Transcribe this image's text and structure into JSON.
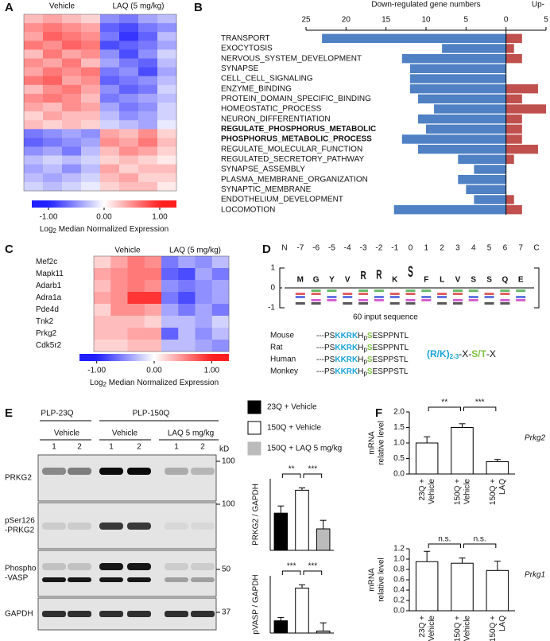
{
  "panel_labels": [
    "A",
    "B",
    "C",
    "D",
    "E",
    "F"
  ],
  "chart_data": [
    {
      "type": "heatmap",
      "group_labels": [
        "Vehicle",
        "LAQ (5 mg/kg)"
      ],
      "colors": [
        "#1f1fff",
        "#ffffff",
        "#ff1f1f"
      ],
      "clim": [
        -1,
        1
      ],
      "colorbar_lim": [
        -1.3,
        1.3
      ],
      "colorbar_ticks": [
        {
          "value": -1,
          "label": "-1.00"
        },
        {
          "value": 0,
          "label": "0.00"
        },
        {
          "value": 1,
          "label": "1.00"
        }
      ],
      "colorbar_label": [
        "Log",
        "2",
        " Median Normalized Expression"
      ],
      "values": [
        [
          0.3,
          0.4,
          0.3,
          0.2,
          -0.5,
          -0.6,
          -0.4,
          -0.3
        ],
        [
          0.5,
          0.6,
          0.5,
          0.4,
          -0.7,
          -0.8,
          -0.6,
          -0.5
        ],
        [
          0.4,
          0.7,
          0.6,
          0.5,
          -0.6,
          -0.9,
          -0.7,
          -0.3
        ],
        [
          0.6,
          0.5,
          0.7,
          0.6,
          -0.8,
          -0.7,
          -0.6,
          -0.4
        ],
        [
          0.3,
          0.6,
          0.4,
          0.5,
          -0.5,
          -0.8,
          -0.5,
          -0.2
        ],
        [
          0.5,
          0.4,
          0.6,
          0.3,
          -0.4,
          -0.6,
          -0.7,
          -0.3
        ],
        [
          0.4,
          0.6,
          0.5,
          0.6,
          -0.6,
          -0.5,
          -0.8,
          -0.4
        ],
        [
          0.6,
          0.7,
          0.4,
          0.5,
          -0.7,
          -0.6,
          -0.5,
          -0.3
        ],
        [
          0.3,
          0.5,
          0.6,
          0.4,
          -0.5,
          -0.7,
          -0.6,
          -0.2
        ],
        [
          0.5,
          0.6,
          0.5,
          0.3,
          -0.6,
          -0.5,
          -0.4,
          -0.3
        ],
        [
          0.4,
          0.3,
          0.5,
          0.4,
          -0.4,
          -0.6,
          -0.5,
          -0.2
        ],
        [
          0.2,
          0.4,
          0.3,
          0.3,
          -0.3,
          -0.5,
          -0.4,
          -0.2
        ],
        [
          0.3,
          0.2,
          0.3,
          0.2,
          -0.2,
          -0.3,
          -0.4,
          -0.1
        ],
        [
          -0.6,
          -0.5,
          -0.4,
          -0.5,
          0.4,
          0.3,
          0.5,
          0.2
        ],
        [
          -0.7,
          -0.6,
          -0.5,
          -0.4,
          0.5,
          0.4,
          0.6,
          0.3
        ],
        [
          -0.5,
          -0.4,
          -0.6,
          -0.3,
          0.3,
          0.5,
          0.4,
          0.2
        ],
        [
          -0.3,
          -0.2,
          -0.3,
          -0.2,
          0.2,
          0.3,
          0.2,
          0.1
        ],
        [
          -0.4,
          -0.3,
          -0.5,
          -0.3,
          0.4,
          0.2,
          0.3,
          0.3
        ],
        [
          -0.3,
          -0.4,
          -0.3,
          -0.2,
          0.3,
          0.4,
          0.2,
          0.2
        ],
        [
          -0.2,
          -0.3,
          -0.2,
          -0.1,
          0.2,
          0.3,
          0.3,
          0.1
        ]
      ]
    },
    {
      "type": "barh",
      "xlabel": "Down-regulated gene numbers",
      "xlabel_up": "Up-",
      "categories": [
        "TRANSPORT",
        "EXOCYTOSIS",
        "NERVOUS_SYSTEM_DEVELOPMENT",
        "SYNAPSE",
        "CELL_CELL_SIGNALING",
        "ENZYME_BINDING",
        "PROTEIN_DOMAIN_SPECIFIC_BINDING",
        "HOMEOSTATIC_PROCESS",
        "NEURON_DIFFERENTIATION",
        "REGULATE_PHOSPHORUS_METABOLIC",
        "PHOSPHORUS_METABOLIC_PROCESS",
        "REGULATE_MOLECULAR_FUNCTION",
        "REGULATED_SECRETORY_PATHWAY",
        "SYNAPSE_ASSEMBLY",
        "PLASMA_MEMBRANE_ORGANIZATION",
        "SYNAPTIC_MEMBRANE",
        "ENDOTHELIUM_DEVELOPMENT",
        "LOCOMOTION"
      ],
      "bold": [
        9,
        10
      ],
      "down_values": [
        23,
        8,
        13,
        12,
        12,
        12,
        11,
        9,
        11,
        10,
        13,
        11,
        6,
        4,
        6,
        5,
        4,
        14
      ],
      "up_values": [
        2,
        1,
        2,
        0,
        0,
        4,
        2,
        5,
        2,
        2,
        2,
        4,
        1,
        0,
        0,
        0,
        1,
        2
      ],
      "down_color": "#4f81c4",
      "up_color": "#c0504d",
      "xlim": [
        -25,
        5
      ],
      "xticks": [
        {
          "value": -25,
          "label": "25"
        },
        {
          "value": -20,
          "label": "20"
        },
        {
          "value": -15,
          "label": "15"
        },
        {
          "value": -10,
          "label": "10"
        },
        {
          "value": -5,
          "label": "5"
        },
        0,
        5
      ]
    },
    {
      "type": "heatmap",
      "group_labels": [
        "Vehicle",
        "LAQ (5 mg/kg)"
      ],
      "rows": [
        "Mef2c",
        "Mapk11",
        "Adarb1",
        "Adra1a",
        "Pde4d",
        "Tnk2",
        "Prkg2",
        "Cdk5r2"
      ],
      "colors": [
        "#1f1fff",
        "#ffffff",
        "#ff1f1f"
      ],
      "clim": [
        -1,
        1
      ],
      "colorbar_lim": [
        -1.3,
        1.3
      ],
      "colorbar_ticks": [
        {
          "value": -1,
          "label": "-1.00"
        },
        {
          "value": 0,
          "label": "0.00"
        },
        {
          "value": 1,
          "label": "1.00"
        }
      ],
      "colorbar_label": [
        "Log",
        "2",
        " Median Normalized Expression"
      ],
      "values": [
        [
          0.2,
          0.4,
          0.6,
          0.5,
          -0.6,
          -0.4,
          -0.5,
          -0.3
        ],
        [
          0.4,
          0.5,
          0.6,
          0.6,
          -0.7,
          -0.8,
          -0.4,
          -0.6
        ],
        [
          0.3,
          0.5,
          0.6,
          0.5,
          -0.5,
          -0.6,
          -0.5,
          -0.4
        ],
        [
          0.4,
          0.5,
          0.9,
          0.9,
          -0.6,
          -0.8,
          -0.5,
          -0.4
        ],
        [
          0.2,
          0.5,
          0.5,
          0.4,
          -0.4,
          -0.6,
          -0.4,
          -0.6
        ],
        [
          0.3,
          0.3,
          0.3,
          0.2,
          -0.3,
          -0.3,
          -0.4,
          -0.2
        ],
        [
          0.3,
          0.3,
          0.4,
          0.4,
          -0.7,
          -0.3,
          -0.5,
          -0.3
        ],
        [
          0.2,
          0.2,
          0.3,
          0.3,
          -0.3,
          -0.3,
          -0.4,
          -0.5
        ]
      ]
    },
    {
      "type": "bar",
      "ylabel": [
        "PRKG2 / GAPDH"
      ],
      "values": [
        1.3,
        2.1,
        0.75
      ],
      "errors": [
        0.25,
        0.08,
        0.3
      ],
      "colors": [
        "#000000",
        "#ffffff",
        "#bbbbbb"
      ],
      "ylim": [
        0,
        2.5
      ],
      "significance": [
        "**",
        "***"
      ]
    },
    {
      "type": "bar",
      "ylabel": [
        "pVASP / GAPDH"
      ],
      "values": [
        0.3,
        1.1,
        0.05
      ],
      "errors": [
        0.08,
        0.08,
        0.2
      ],
      "colors": [
        "#000000",
        "#ffffff",
        "#bbbbbb"
      ],
      "ylim": [
        0,
        1.4
      ],
      "significance": [
        "***",
        "***"
      ]
    },
    {
      "type": "bar",
      "title": "Prkg2",
      "ylabel": [
        "mRNA",
        "relative level"
      ],
      "categories": [
        [
          "23Q +",
          "Vehicle"
        ],
        [
          "150Q +",
          "Vehicle"
        ],
        [
          "150Q +",
          "LAQ"
        ]
      ],
      "values": [
        1.0,
        1.5,
        0.4
      ],
      "errors": [
        0.2,
        0.12,
        0.07
      ],
      "colors": [
        "#ffffff",
        "#ffffff",
        "#ffffff"
      ],
      "ylim": [
        0,
        2
      ],
      "yticks": [
        {
          "value": 0,
          "label": "0.0"
        },
        0.5,
        {
          "value": 1,
          "label": "1.0"
        },
        1.5,
        {
          "value": 2,
          "label": "2.0"
        }
      ],
      "significance": [
        "**",
        "***"
      ]
    },
    {
      "type": "bar",
      "title": "Prkg1",
      "ylabel": [
        "mRNA",
        "relative level"
      ],
      "categories": [
        [
          "23Q +",
          "Vehicle"
        ],
        [
          "150Q +",
          "Vehicle"
        ],
        [
          "150Q +",
          "LAQ"
        ]
      ],
      "values": [
        0.95,
        0.92,
        0.78
      ],
      "errors": [
        0.2,
        0.1,
        0.18
      ],
      "colors": [
        "#ffffff",
        "#ffffff",
        "#ffffff"
      ],
      "ylim": [
        0,
        1.2
      ],
      "yticks": [
        {
          "value": 0,
          "label": "0.0"
        },
        0.2,
        0.4,
        0.6,
        0.8,
        {
          "value": 1,
          "label": "1.0"
        },
        1.2
      ],
      "significance": [
        "n.s.",
        "n.s."
      ]
    }
  ],
  "logo": {
    "positions": [
      "N",
      -7,
      -6,
      -5,
      -4,
      -3,
      -2,
      -1,
      0,
      1,
      2,
      3,
      4,
      5,
      6,
      7,
      "C"
    ],
    "letters": [
      "M",
      "G",
      "Y",
      "V",
      "R",
      "R",
      "K",
      "S",
      "F",
      "L",
      "V",
      "S",
      "S",
      "Q",
      "E"
    ],
    "yticks": [
      1,
      0,
      -1
    ],
    "caption": "60 input sequence"
  },
  "alignment": {
    "rows": [
      {
        "species": "Mouse",
        "parts": [
          "---PS",
          "KKRK",
          "H",
          "p",
          "S",
          "ESPPNTL"
        ]
      },
      {
        "species": "Rat",
        "parts": [
          "---PS",
          "KKRK",
          "H",
          "p",
          "S",
          "ESPPNTL"
        ]
      },
      {
        "species": "Human",
        "parts": [
          "---PS",
          "KKRK",
          "H",
          "p",
          "S",
          "ESPPSTL"
        ]
      },
      {
        "species": "Monkey",
        "parts": [
          "---PS",
          "KKRK",
          "H",
          "p",
          "S",
          "ESPPSTL"
        ]
      }
    ],
    "motif": [
      "(R/K)",
      "2-3",
      "-X-",
      "S/T",
      "-X"
    ]
  },
  "blot": {
    "groups": [
      "PLP-23Q",
      "PLP-150Q"
    ],
    "treatments": [
      "Vehicle",
      "Vehicle",
      "LAQ 5 mg/kg"
    ],
    "lanes": [
      1,
      2,
      1,
      2,
      1,
      2
    ],
    "unit": "kD",
    "rows": [
      [
        "PRKG2"
      ],
      [
        "pSer126",
        "-PRKG2"
      ],
      [
        "Phospho",
        "-VASP"
      ],
      [
        "GAPDH"
      ]
    ],
    "markers": [
      100,
      100,
      50,
      37
    ]
  },
  "legend": [
    {
      "name": "23Q + Vehicle",
      "color": "#000000"
    },
    {
      "name": "150Q + Vehicle",
      "color": "#ffffff"
    },
    {
      "name": "150Q + LAQ 5 mg/kg",
      "color": "#bbbbbb"
    }
  ]
}
